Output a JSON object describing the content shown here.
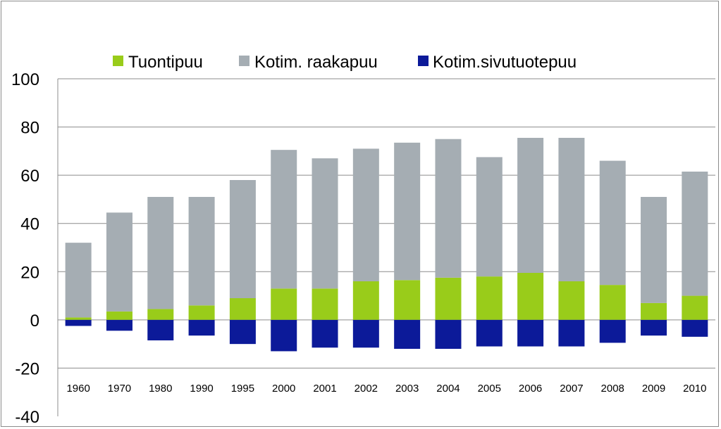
{
  "chart_data": {
    "type": "bar",
    "stacked": true,
    "categories": [
      "1960",
      "1970",
      "1980",
      "1990",
      "1995",
      "2000",
      "2001",
      "2002",
      "2003",
      "2004",
      "2005",
      "2006",
      "2007",
      "2008",
      "2009",
      "2010"
    ],
    "series": [
      {
        "name": "Tuontipuu",
        "color": "#99cc1a",
        "values": [
          1,
          3.5,
          4.5,
          6,
          9,
          13,
          13,
          16,
          16.5,
          17.5,
          18,
          19.5,
          16,
          14.5,
          7,
          10
        ]
      },
      {
        "name": "Kotim. raakapuu",
        "color": "#a5adb3",
        "values": [
          31,
          41,
          46.5,
          45,
          49,
          57.5,
          54,
          55,
          57,
          57.5,
          49.5,
          56,
          59.5,
          51.5,
          44,
          51.5
        ]
      },
      {
        "name": "Kotim.sivutuotepuu",
        "color": "#0c1a99",
        "values": [
          -2.5,
          -4.5,
          -8.5,
          -6.5,
          -10,
          -13,
          -11.5,
          -11.5,
          -12,
          -12,
          -11,
          -11,
          -11,
          -9.5,
          -6.5,
          -7
        ]
      }
    ],
    "ylim": [
      -40,
      100
    ],
    "yticks": [
      "100",
      "80",
      "60",
      "40",
      "20",
      "0",
      "-20",
      "-40"
    ],
    "ytick_values": [
      100,
      80,
      60,
      40,
      20,
      0,
      -20,
      -40
    ],
    "grid": true,
    "legend_position": "top"
  }
}
